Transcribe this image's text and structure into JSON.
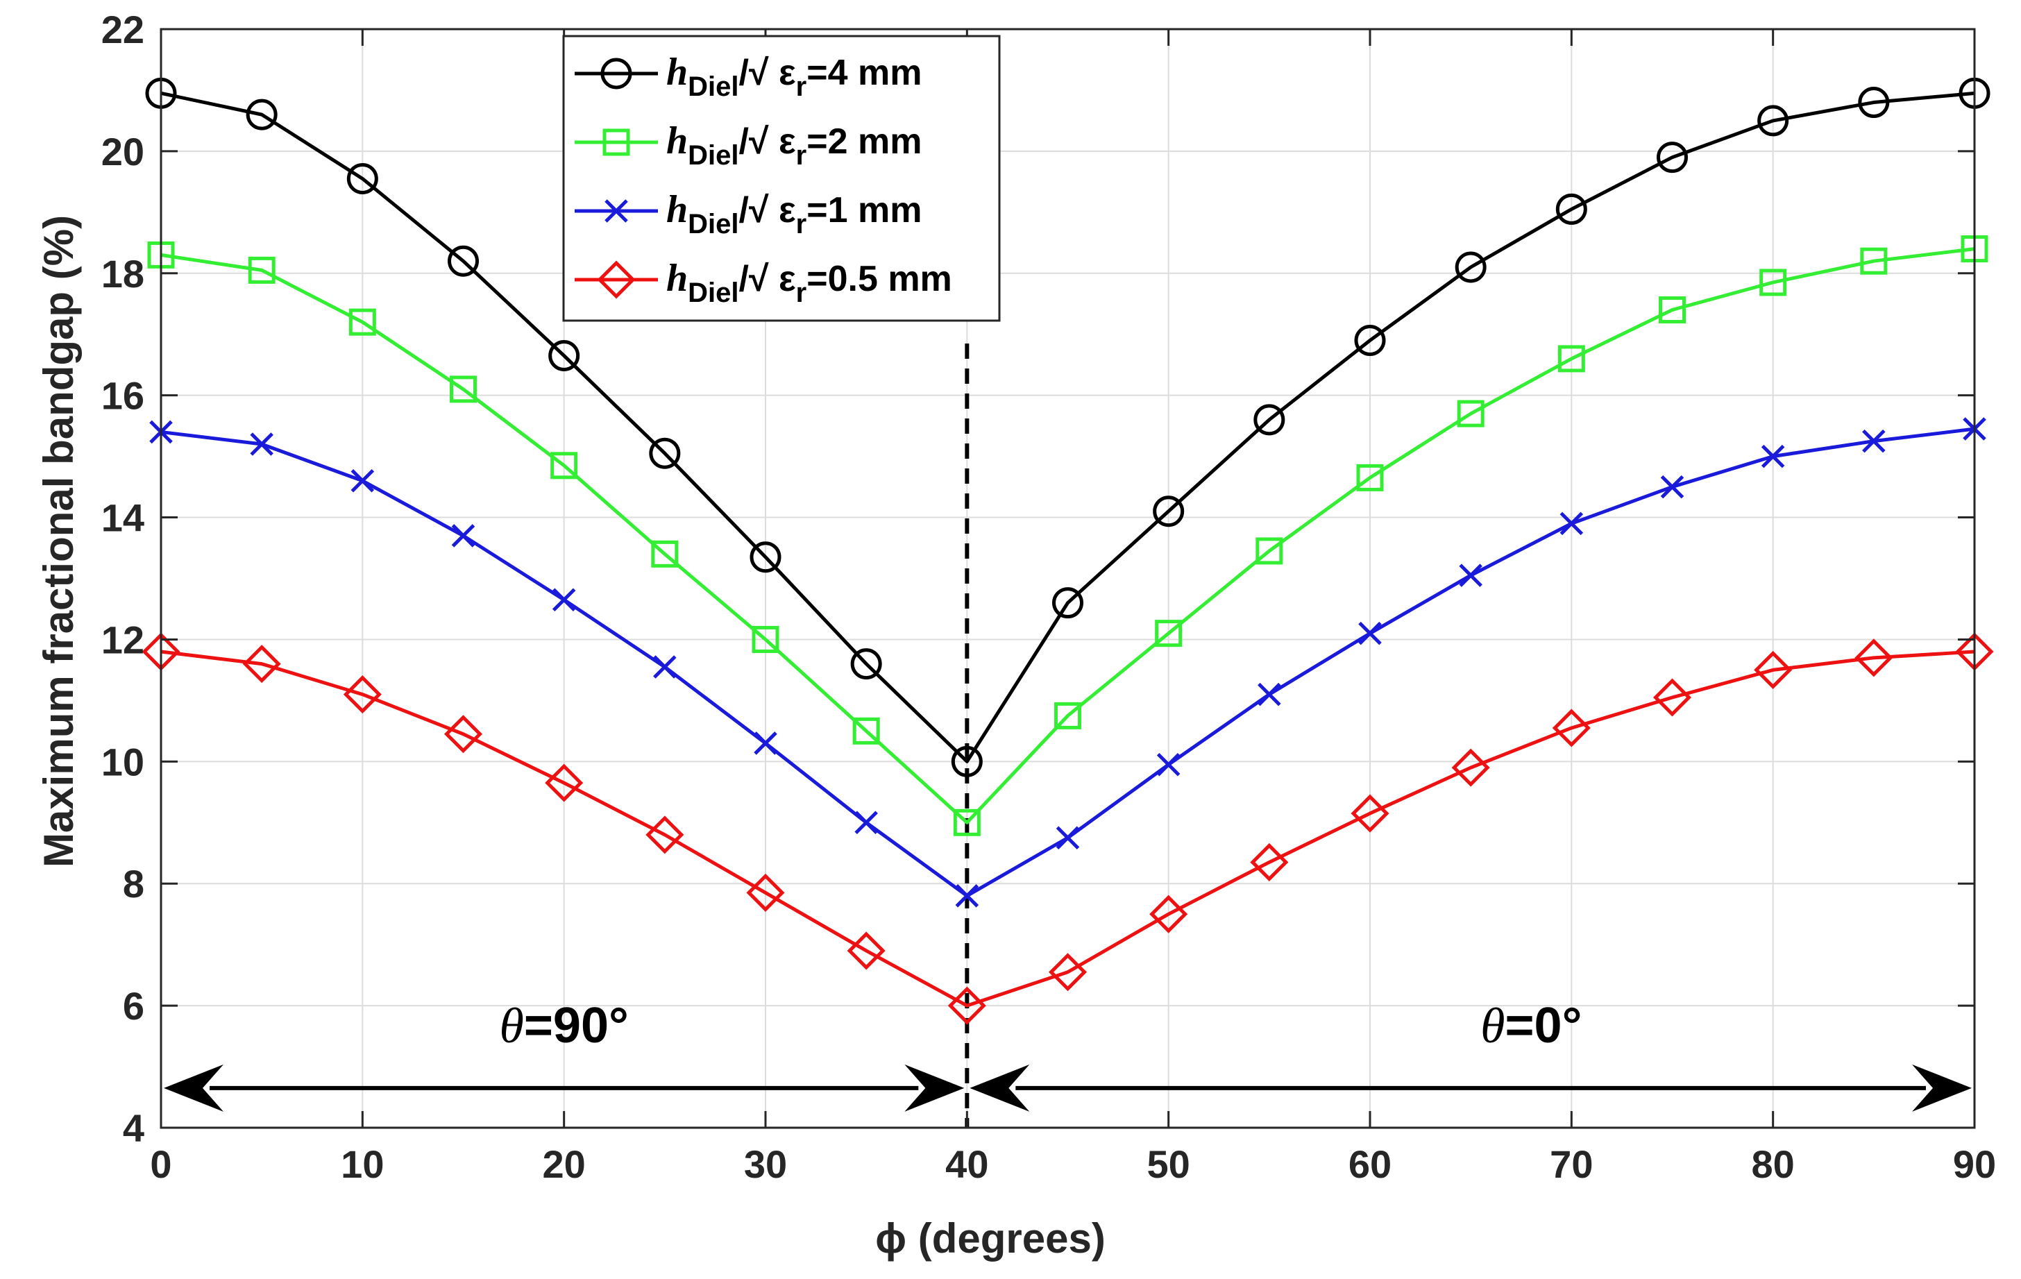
{
  "chart_data": {
    "type": "line",
    "title": "",
    "xlabel": "ϕ (degrees)",
    "ylabel": "Maximum fractional bandgap (%)",
    "xlim": [
      0,
      90
    ],
    "ylim": [
      4,
      22
    ],
    "xticks": [
      0,
      10,
      20,
      30,
      40,
      50,
      60,
      70,
      80,
      90
    ],
    "yticks": [
      4,
      6,
      8,
      10,
      12,
      14,
      16,
      18,
      20,
      22
    ],
    "grid": true,
    "legend_position": "top-center",
    "x": [
      0,
      5,
      10,
      15,
      20,
      25,
      30,
      35,
      40,
      45,
      50,
      55,
      60,
      65,
      70,
      75,
      80,
      85,
      90
    ],
    "series": [
      {
        "name": "hDiel/√ εr=4 mm",
        "label_main": "h",
        "label_sub1": "Diel",
        "label_mid": "/√ ε",
        "label_sub2": "r",
        "label_value": "=4 mm",
        "color": "#000000",
        "marker": "circle",
        "values": [
          20.95,
          20.6,
          19.55,
          18.2,
          16.65,
          15.05,
          13.35,
          11.6,
          10.0,
          12.6,
          14.1,
          15.6,
          16.9,
          18.1,
          19.05,
          19.9,
          20.5,
          20.8,
          20.95
        ]
      },
      {
        "name": "hDiel/√ εr=2 mm",
        "label_main": "h",
        "label_sub1": "Diel",
        "label_mid": "/√ ε",
        "label_sub2": "r",
        "label_value": "=2 mm",
        "color": "#33ee33",
        "marker": "square",
        "values": [
          18.3,
          18.05,
          17.2,
          16.1,
          14.85,
          13.4,
          12.0,
          10.5,
          9.0,
          10.75,
          12.1,
          13.45,
          14.65,
          15.7,
          16.6,
          17.4,
          17.85,
          18.2,
          18.4
        ]
      },
      {
        "name": "hDiel/√ εr=1 mm",
        "label_main": "h",
        "label_sub1": "Diel",
        "label_mid": "/√ ε",
        "label_sub2": "r",
        "label_value": "=1 mm",
        "color": "#1a1adb",
        "marker": "x",
        "values": [
          15.4,
          15.2,
          14.6,
          13.7,
          12.65,
          11.55,
          10.3,
          9.0,
          7.8,
          8.75,
          9.95,
          11.1,
          12.1,
          13.05,
          13.9,
          14.5,
          15.0,
          15.25,
          15.45
        ]
      },
      {
        "name": "hDiel/√ εr=0.5 mm",
        "label_main": "h",
        "label_sub1": "Diel",
        "label_mid": "/√ ε",
        "label_sub2": "r",
        "label_value": "=0.5 mm",
        "color": "#ee1111",
        "marker": "diamond",
        "values": [
          11.8,
          11.6,
          11.1,
          10.45,
          9.65,
          8.8,
          7.85,
          6.9,
          6.0,
          6.55,
          7.5,
          8.35,
          9.15,
          9.9,
          10.55,
          11.05,
          11.5,
          11.7,
          11.8
        ]
      }
    ],
    "divider_x": 40,
    "arrow_y": 4.65,
    "annotations": [
      {
        "symbol": "θ",
        "text": "=90°",
        "x": 20,
        "y": 5.4
      },
      {
        "symbol": "θ",
        "text": "=0°",
        "x": 68,
        "y": 5.4
      }
    ]
  }
}
